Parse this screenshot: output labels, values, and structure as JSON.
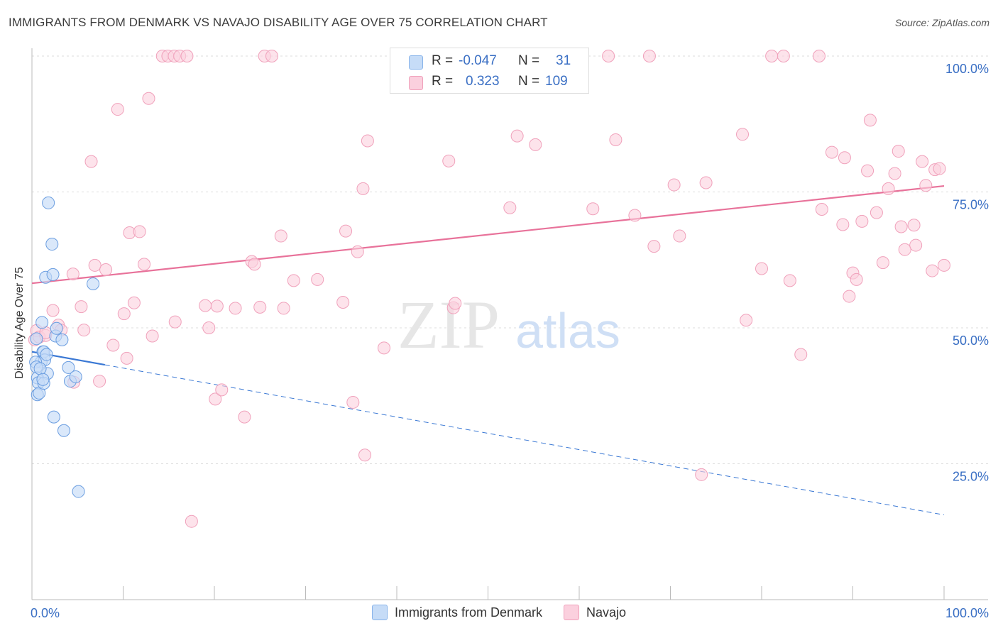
{
  "title": "IMMIGRANTS FROM DENMARK VS NAVAJO DISABILITY AGE OVER 75 CORRELATION CHART",
  "source": "Source: ZipAtlas.com",
  "watermark": {
    "zip": "ZIP",
    "atlas": "atlas"
  },
  "stats": {
    "blue": {
      "r_label": "R =",
      "r_value": "-0.047",
      "n_label": "N =",
      "n_value": "31"
    },
    "pink": {
      "r_label": "R =",
      "r_value": "0.323",
      "n_label": "N =",
      "n_value": "109"
    }
  },
  "legend": {
    "blue": "Immigrants from Denmark",
    "pink": "Navajo"
  },
  "colors": {
    "blue": "#3a78d4",
    "blue_fill": "#c6dcf7",
    "pink": "#e8729a",
    "pink_fill": "#fbd0de",
    "axis_text": "#3a6fc4"
  },
  "chart_data": {
    "type": "scatter",
    "xlabel": "",
    "ylabel": "Disability Age Over 75",
    "xlim": [
      0,
      100
    ],
    "ylim": [
      0,
      100
    ],
    "x_tick_labels": [
      "0.0%",
      "100.0%"
    ],
    "y_tick_labels": [
      "100.0%",
      "75.0%",
      "50.0%",
      "25.0%"
    ],
    "y_ticks": [
      100,
      75,
      50,
      25
    ],
    "grid": true,
    "legend_position": "bottom",
    "series": [
      {
        "name": "Immigrants from Denmark",
        "trend": {
          "x0": 0,
          "y0": 45.6,
          "x1": 8,
          "y1": 43.2,
          "dashed_to_x": 100,
          "dashed_to_y": 15.6
        },
        "points": [
          [
            1.0,
            43.7
          ],
          [
            1.1,
            51.0
          ],
          [
            1.2,
            45.6
          ],
          [
            1.3,
            45.6
          ],
          [
            1.4,
            44.1
          ],
          [
            1.5,
            59.3
          ],
          [
            1.6,
            45.1
          ],
          [
            1.7,
            41.6
          ],
          [
            1.8,
            73.0
          ],
          [
            2.2,
            65.4
          ],
          [
            2.3,
            59.8
          ],
          [
            2.4,
            33.6
          ],
          [
            2.6,
            48.5
          ],
          [
            3.3,
            47.8
          ],
          [
            3.5,
            31.1
          ],
          [
            4.0,
            42.7
          ],
          [
            4.2,
            40.2
          ],
          [
            4.8,
            41.0
          ],
          [
            5.1,
            19.9
          ],
          [
            6.7,
            58.1
          ],
          [
            0.4,
            43.7
          ],
          [
            0.5,
            42.8
          ],
          [
            0.6,
            40.8
          ],
          [
            0.6,
            37.7
          ],
          [
            0.7,
            39.9
          ],
          [
            0.8,
            38.0
          ],
          [
            0.9,
            42.5
          ],
          [
            0.5,
            48.0
          ],
          [
            1.3,
            39.8
          ],
          [
            2.7,
            49.9
          ],
          [
            1.2,
            40.5
          ]
        ]
      },
      {
        "name": "Navajo",
        "trend": {
          "x0": 0,
          "y0": 58.2,
          "x1": 100,
          "y1": 76.1
        },
        "points": [
          [
            0.3,
            47.8
          ],
          [
            0.5,
            49.5
          ],
          [
            0.8,
            48.3
          ],
          [
            1.5,
            48.6
          ],
          [
            1.5,
            49.1
          ],
          [
            2.3,
            53.2
          ],
          [
            2.9,
            50.5
          ],
          [
            3.2,
            49.6
          ],
          [
            4.5,
            59.9
          ],
          [
            4.6,
            40.0
          ],
          [
            5.4,
            53.9
          ],
          [
            5.7,
            49.6
          ],
          [
            6.5,
            80.6
          ],
          [
            6.9,
            61.5
          ],
          [
            7.4,
            40.2
          ],
          [
            8.1,
            60.7
          ],
          [
            8.9,
            46.8
          ],
          [
            9.4,
            90.2
          ],
          [
            10.1,
            52.6
          ],
          [
            10.4,
            44.4
          ],
          [
            10.7,
            67.5
          ],
          [
            11.2,
            54.6
          ],
          [
            11.8,
            67.7
          ],
          [
            12.3,
            61.7
          ],
          [
            12.8,
            92.2
          ],
          [
            13.2,
            48.5
          ],
          [
            14.3,
            100.0
          ],
          [
            14.9,
            100.0
          ],
          [
            15.6,
            100.0
          ],
          [
            15.7,
            51.1
          ],
          [
            16.2,
            100.0
          ],
          [
            17.0,
            100.0
          ],
          [
            17.5,
            14.4
          ],
          [
            19.0,
            54.1
          ],
          [
            19.4,
            50.0
          ],
          [
            20.1,
            36.9
          ],
          [
            20.3,
            54.0
          ],
          [
            20.8,
            38.6
          ],
          [
            22.3,
            53.6
          ],
          [
            23.3,
            33.6
          ],
          [
            24.1,
            62.2
          ],
          [
            24.4,
            61.7
          ],
          [
            25.0,
            53.8
          ],
          [
            25.5,
            100.0
          ],
          [
            26.3,
            100.0
          ],
          [
            27.3,
            66.9
          ],
          [
            27.6,
            53.6
          ],
          [
            28.7,
            58.7
          ],
          [
            31.3,
            58.9
          ],
          [
            34.1,
            54.7
          ],
          [
            34.4,
            67.8
          ],
          [
            35.2,
            36.3
          ],
          [
            35.7,
            64.0
          ],
          [
            36.3,
            75.6
          ],
          [
            36.5,
            26.6
          ],
          [
            36.8,
            84.4
          ],
          [
            38.6,
            46.3
          ],
          [
            40.3,
            100.0
          ],
          [
            45.7,
            80.7
          ],
          [
            46.2,
            53.7
          ],
          [
            46.4,
            54.5
          ],
          [
            47.1,
            100.0
          ],
          [
            52.4,
            72.1
          ],
          [
            53.2,
            85.3
          ],
          [
            55.2,
            83.7
          ],
          [
            58.6,
            100.0
          ],
          [
            61.5,
            71.9
          ],
          [
            63.2,
            100.0
          ],
          [
            64.0,
            84.6
          ],
          [
            66.1,
            70.7
          ],
          [
            67.7,
            100.0
          ],
          [
            68.2,
            65.0
          ],
          [
            70.4,
            76.3
          ],
          [
            71.0,
            66.9
          ],
          [
            73.4,
            23.0
          ],
          [
            73.9,
            76.7
          ],
          [
            77.9,
            85.6
          ],
          [
            78.3,
            51.4
          ],
          [
            80.0,
            60.9
          ],
          [
            81.1,
            100.0
          ],
          [
            82.4,
            100.0
          ],
          [
            83.1,
            58.7
          ],
          [
            84.3,
            45.1
          ],
          [
            86.3,
            100.0
          ],
          [
            86.6,
            71.8
          ],
          [
            87.7,
            82.3
          ],
          [
            88.9,
            69.0
          ],
          [
            89.1,
            81.3
          ],
          [
            89.6,
            55.8
          ],
          [
            90.0,
            60.1
          ],
          [
            90.4,
            58.9
          ],
          [
            91.0,
            69.6
          ],
          [
            91.6,
            78.9
          ],
          [
            91.9,
            88.2
          ],
          [
            92.6,
            71.2
          ],
          [
            93.3,
            62.0
          ],
          [
            93.9,
            75.6
          ],
          [
            94.6,
            78.4
          ],
          [
            95.0,
            82.5
          ],
          [
            95.3,
            68.6
          ],
          [
            95.7,
            64.4
          ],
          [
            96.7,
            68.9
          ],
          [
            96.9,
            65.2
          ],
          [
            97.6,
            80.6
          ],
          [
            98.0,
            76.2
          ],
          [
            98.7,
            60.5
          ],
          [
            99.0,
            79.1
          ],
          [
            99.5,
            79.3
          ],
          [
            100.0,
            61.5
          ]
        ]
      }
    ]
  }
}
